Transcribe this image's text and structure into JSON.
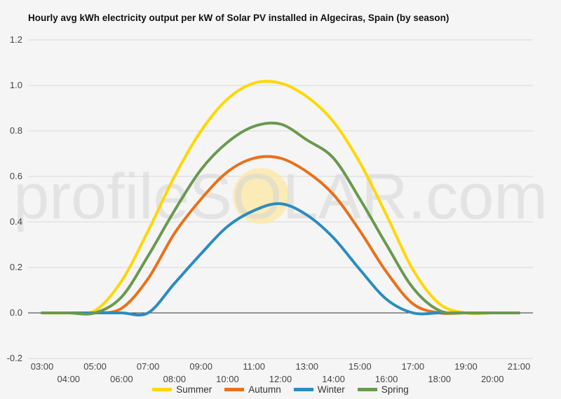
{
  "chart_data": {
    "type": "line",
    "title": "Hourly avg kWh electricity output per kW of Solar PV installed in Algeciras, Spain (by season)",
    "watermark": "profileSOLAR.com",
    "xlabel": "",
    "ylabel": "",
    "ylim": [
      -0.2,
      1.2
    ],
    "yticks": [
      "-0.2",
      "0.0",
      "0.2",
      "0.4",
      "0.6",
      "0.8",
      "1.0",
      "1.2"
    ],
    "xticks_upper": [
      "03:00",
      "05:00",
      "07:00",
      "09:00",
      "11:00",
      "13:00",
      "15:00",
      "17:00",
      "19:00",
      "21:00"
    ],
    "xticks_lower": [
      "04:00",
      "06:00",
      "08:00",
      "10:00",
      "12:00",
      "14:00",
      "16:00",
      "18:00",
      "20:00"
    ],
    "grid": true,
    "legend_position": "bottom",
    "x": [
      "03:00",
      "04:00",
      "05:00",
      "06:00",
      "07:00",
      "08:00",
      "09:00",
      "10:00",
      "11:00",
      "12:00",
      "13:00",
      "14:00",
      "15:00",
      "16:00",
      "17:00",
      "18:00",
      "19:00",
      "20:00",
      "21:00"
    ],
    "series": [
      {
        "name": "Summer",
        "color": "#ffd700",
        "values": [
          0,
          0,
          0.01,
          0.14,
          0.36,
          0.6,
          0.8,
          0.94,
          1.01,
          1.01,
          0.95,
          0.84,
          0.66,
          0.43,
          0.19,
          0.04,
          0.0,
          0.0,
          0.0
        ]
      },
      {
        "name": "Autumn",
        "color": "#e8711a",
        "values": [
          0,
          0,
          0.0,
          0.02,
          0.15,
          0.35,
          0.5,
          0.62,
          0.68,
          0.68,
          0.62,
          0.52,
          0.36,
          0.18,
          0.04,
          0.0,
          0.0,
          0.0,
          0.0
        ]
      },
      {
        "name": "Winter",
        "color": "#2b8cbf",
        "values": [
          0,
          0,
          0.0,
          0.0,
          0.0,
          0.13,
          0.26,
          0.38,
          0.45,
          0.48,
          0.43,
          0.33,
          0.19,
          0.06,
          0.0,
          0.0,
          0.0,
          0.0,
          0.0
        ]
      },
      {
        "name": "Spring",
        "color": "#6a994e",
        "values": [
          0,
          0,
          0.0,
          0.07,
          0.25,
          0.45,
          0.63,
          0.75,
          0.82,
          0.83,
          0.76,
          0.68,
          0.5,
          0.3,
          0.11,
          0.01,
          0.0,
          0.0,
          0.0
        ]
      }
    ]
  }
}
